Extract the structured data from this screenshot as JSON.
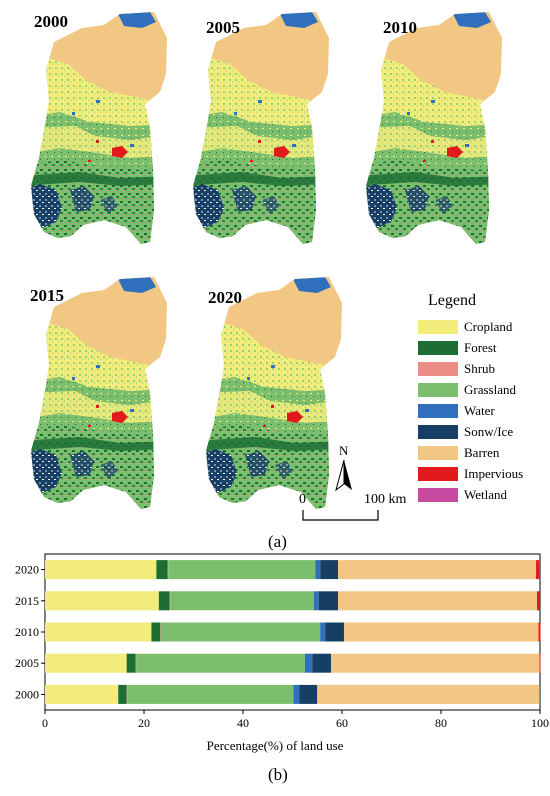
{
  "panel_a": {
    "maps": [
      {
        "year": "2000"
      },
      {
        "year": "2005"
      },
      {
        "year": "2010"
      },
      {
        "year": "2015"
      },
      {
        "year": "2020"
      }
    ],
    "legend": {
      "title": "Legend",
      "items": [
        {
          "label": "Cropland",
          "color": "#f2ec7a"
        },
        {
          "label": "Forest",
          "color": "#1c6e35"
        },
        {
          "label": "Shrub",
          "color": "#ec8c86"
        },
        {
          "label": "Grassland",
          "color": "#7bbf6e"
        },
        {
          "label": "Water",
          "color": "#2f6fbb"
        },
        {
          "label": "Sonw/Ice",
          "color": "#173f66"
        },
        {
          "label": "Barren",
          "color": "#f2c784"
        },
        {
          "label": "Impervious",
          "color": "#e31a1c"
        },
        {
          "label": "Wetland",
          "color": "#c74aa0"
        }
      ]
    },
    "north_label": "N",
    "scale": {
      "start": "0",
      "end": "100 km"
    },
    "caption": "(a)"
  },
  "chart_data": {
    "type": "bar",
    "orientation": "horizontal",
    "stacked": true,
    "categories": [
      "2020",
      "2015",
      "2010",
      "2005",
      "2000"
    ],
    "series": [
      {
        "name": "Cropland",
        "values": [
          22.5,
          23.0,
          21.5,
          16.5,
          14.8
        ]
      },
      {
        "name": "Forest",
        "values": [
          2.3,
          2.2,
          1.8,
          1.8,
          1.7
        ]
      },
      {
        "name": "Shrub",
        "values": [
          0.1,
          0.1,
          0.1,
          0.1,
          0.1
        ]
      },
      {
        "name": "Grassland",
        "values": [
          29.7,
          29.0,
          32.2,
          34.1,
          33.6
        ]
      },
      {
        "name": "Water",
        "values": [
          1.0,
          1.0,
          1.0,
          1.5,
          1.2
        ]
      },
      {
        "name": "Sonw/Ice",
        "values": [
          3.6,
          3.9,
          3.8,
          3.8,
          3.6
        ]
      },
      {
        "name": "Barren",
        "values": [
          40.0,
          40.2,
          39.3,
          42.1,
          44.9
        ]
      },
      {
        "name": "Impervious",
        "values": [
          0.7,
          0.6,
          0.4,
          0.2,
          0.1
        ]
      },
      {
        "name": "Wetland",
        "values": [
          0.1,
          0.0,
          0.0,
          0.0,
          0.0
        ]
      }
    ],
    "xlabel": "Percentage(%) of land use",
    "ylabel": "",
    "xlim": [
      0,
      100
    ],
    "xticks": [
      "0",
      "20",
      "40",
      "60",
      "80",
      "100"
    ],
    "grid": false,
    "legend": "none"
  },
  "panel_b": {
    "caption": "(b)"
  }
}
